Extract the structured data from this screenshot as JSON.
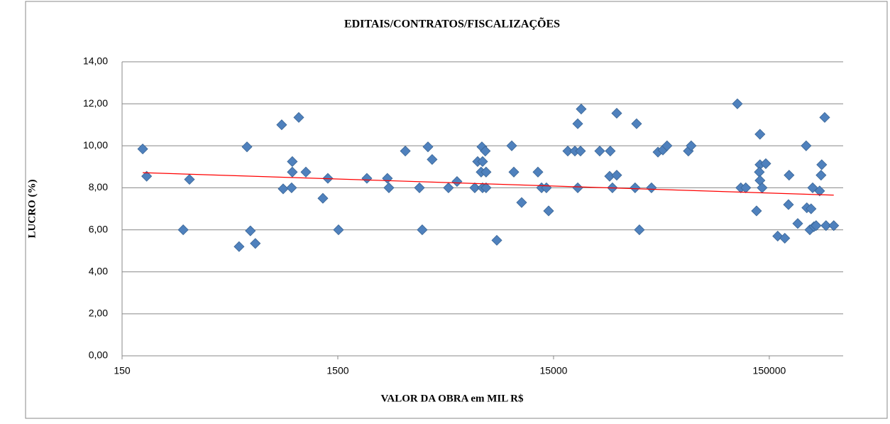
{
  "chart_data": {
    "type": "scatter",
    "title": "EDITAIS/CONTRATOS/FISCALIZAÇÕES",
    "x_label": "VALOR DA OBRA em MIL R$",
    "y_label": "LUCRO (%)",
    "x_scale": "log",
    "grid": true,
    "xlim": [
      150,
      330000
    ],
    "xticks": [
      150,
      1500,
      15000,
      150000
    ],
    "ylim": [
      0,
      14
    ],
    "yticks": [
      {
        "value": 0,
        "label": "0,00"
      },
      {
        "value": 2,
        "label": "2,00"
      },
      {
        "value": 4,
        "label": "4,00"
      },
      {
        "value": 6,
        "label": "6,00"
      },
      {
        "value": 8,
        "label": "8,00"
      },
      {
        "value": 10,
        "label": "10,00"
      },
      {
        "value": 12,
        "label": "12,00"
      },
      {
        "value": 14,
        "label": "14,00"
      }
    ],
    "series": [
      {
        "color": "#4f81bd",
        "x": [
          187,
          195,
          288,
          308,
          523,
          569,
          590,
          622,
          824,
          837,
          923,
          923,
          916,
          989,
          1067,
          1279,
          1349,
          1511,
          2046,
          2547,
          2588,
          3083,
          3585,
          3693,
          3926,
          4105,
          4887,
          5353,
          6471,
          6670,
          6980,
          7033,
          6925,
          7300,
          7240,
          7033,
          7300,
          8188,
          9600,
          9820,
          10670,
          12700,
          13200,
          13900,
          14230,
          17460,
          18840,
          19420,
          20150,
          20000,
          19420,
          24550,
          27480,
          27290,
          28120,
          29440,
          29440,
          36390,
          35810,
          37500,
          42660,
          45710,
          48190,
          50350,
          63240,
          65170,
          106700,
          110700,
          116700,
          130900,
          135800,
          135800,
          134900,
          135800,
          139000,
          144500,
          164100,
          177000,
          185300,
          184100,
          203200,
          222300,
          223900,
          234400,
          231200,
          238300,
          241600,
          247200,
          256800,
          262500,
          260600,
          271000,
          274800,
          298500
        ],
        "values": [
          9.85,
          8.55,
          6.0,
          8.4,
          5.2,
          9.95,
          5.95,
          5.35,
          11.0,
          7.95,
          9.25,
          8.75,
          8.0,
          11.35,
          8.75,
          7.5,
          8.45,
          6.0,
          8.45,
          8.45,
          8.0,
          9.75,
          8.0,
          6.0,
          9.95,
          9.35,
          8.0,
          8.3,
          8.0,
          9.25,
          9.95,
          9.25,
          8.75,
          8.75,
          9.75,
          8.0,
          8.0,
          5.5,
          10.0,
          8.75,
          7.3,
          8.75,
          8.0,
          8.0,
          6.9,
          9.75,
          9.75,
          11.05,
          11.75,
          9.75,
          8.0,
          9.75,
          9.75,
          8.55,
          8.0,
          11.55,
          8.6,
          11.05,
          8.0,
          6.0,
          8.0,
          9.7,
          9.8,
          10.0,
          9.75,
          10.0,
          12.0,
          8.0,
          8.0,
          6.9,
          10.55,
          9.1,
          8.75,
          8.35,
          8.0,
          9.15,
          5.7,
          5.6,
          8.6,
          7.2,
          6.3,
          10.0,
          7.05,
          7.0,
          6.0,
          8.0,
          6.15,
          6.2,
          7.85,
          9.1,
          8.6,
          11.35,
          6.2,
          6.2
        ]
      }
    ],
    "trendline": {
      "color": "#ff0000",
      "x": [
        187,
        298500
      ],
      "values": [
        8.72,
        7.65
      ]
    }
  }
}
